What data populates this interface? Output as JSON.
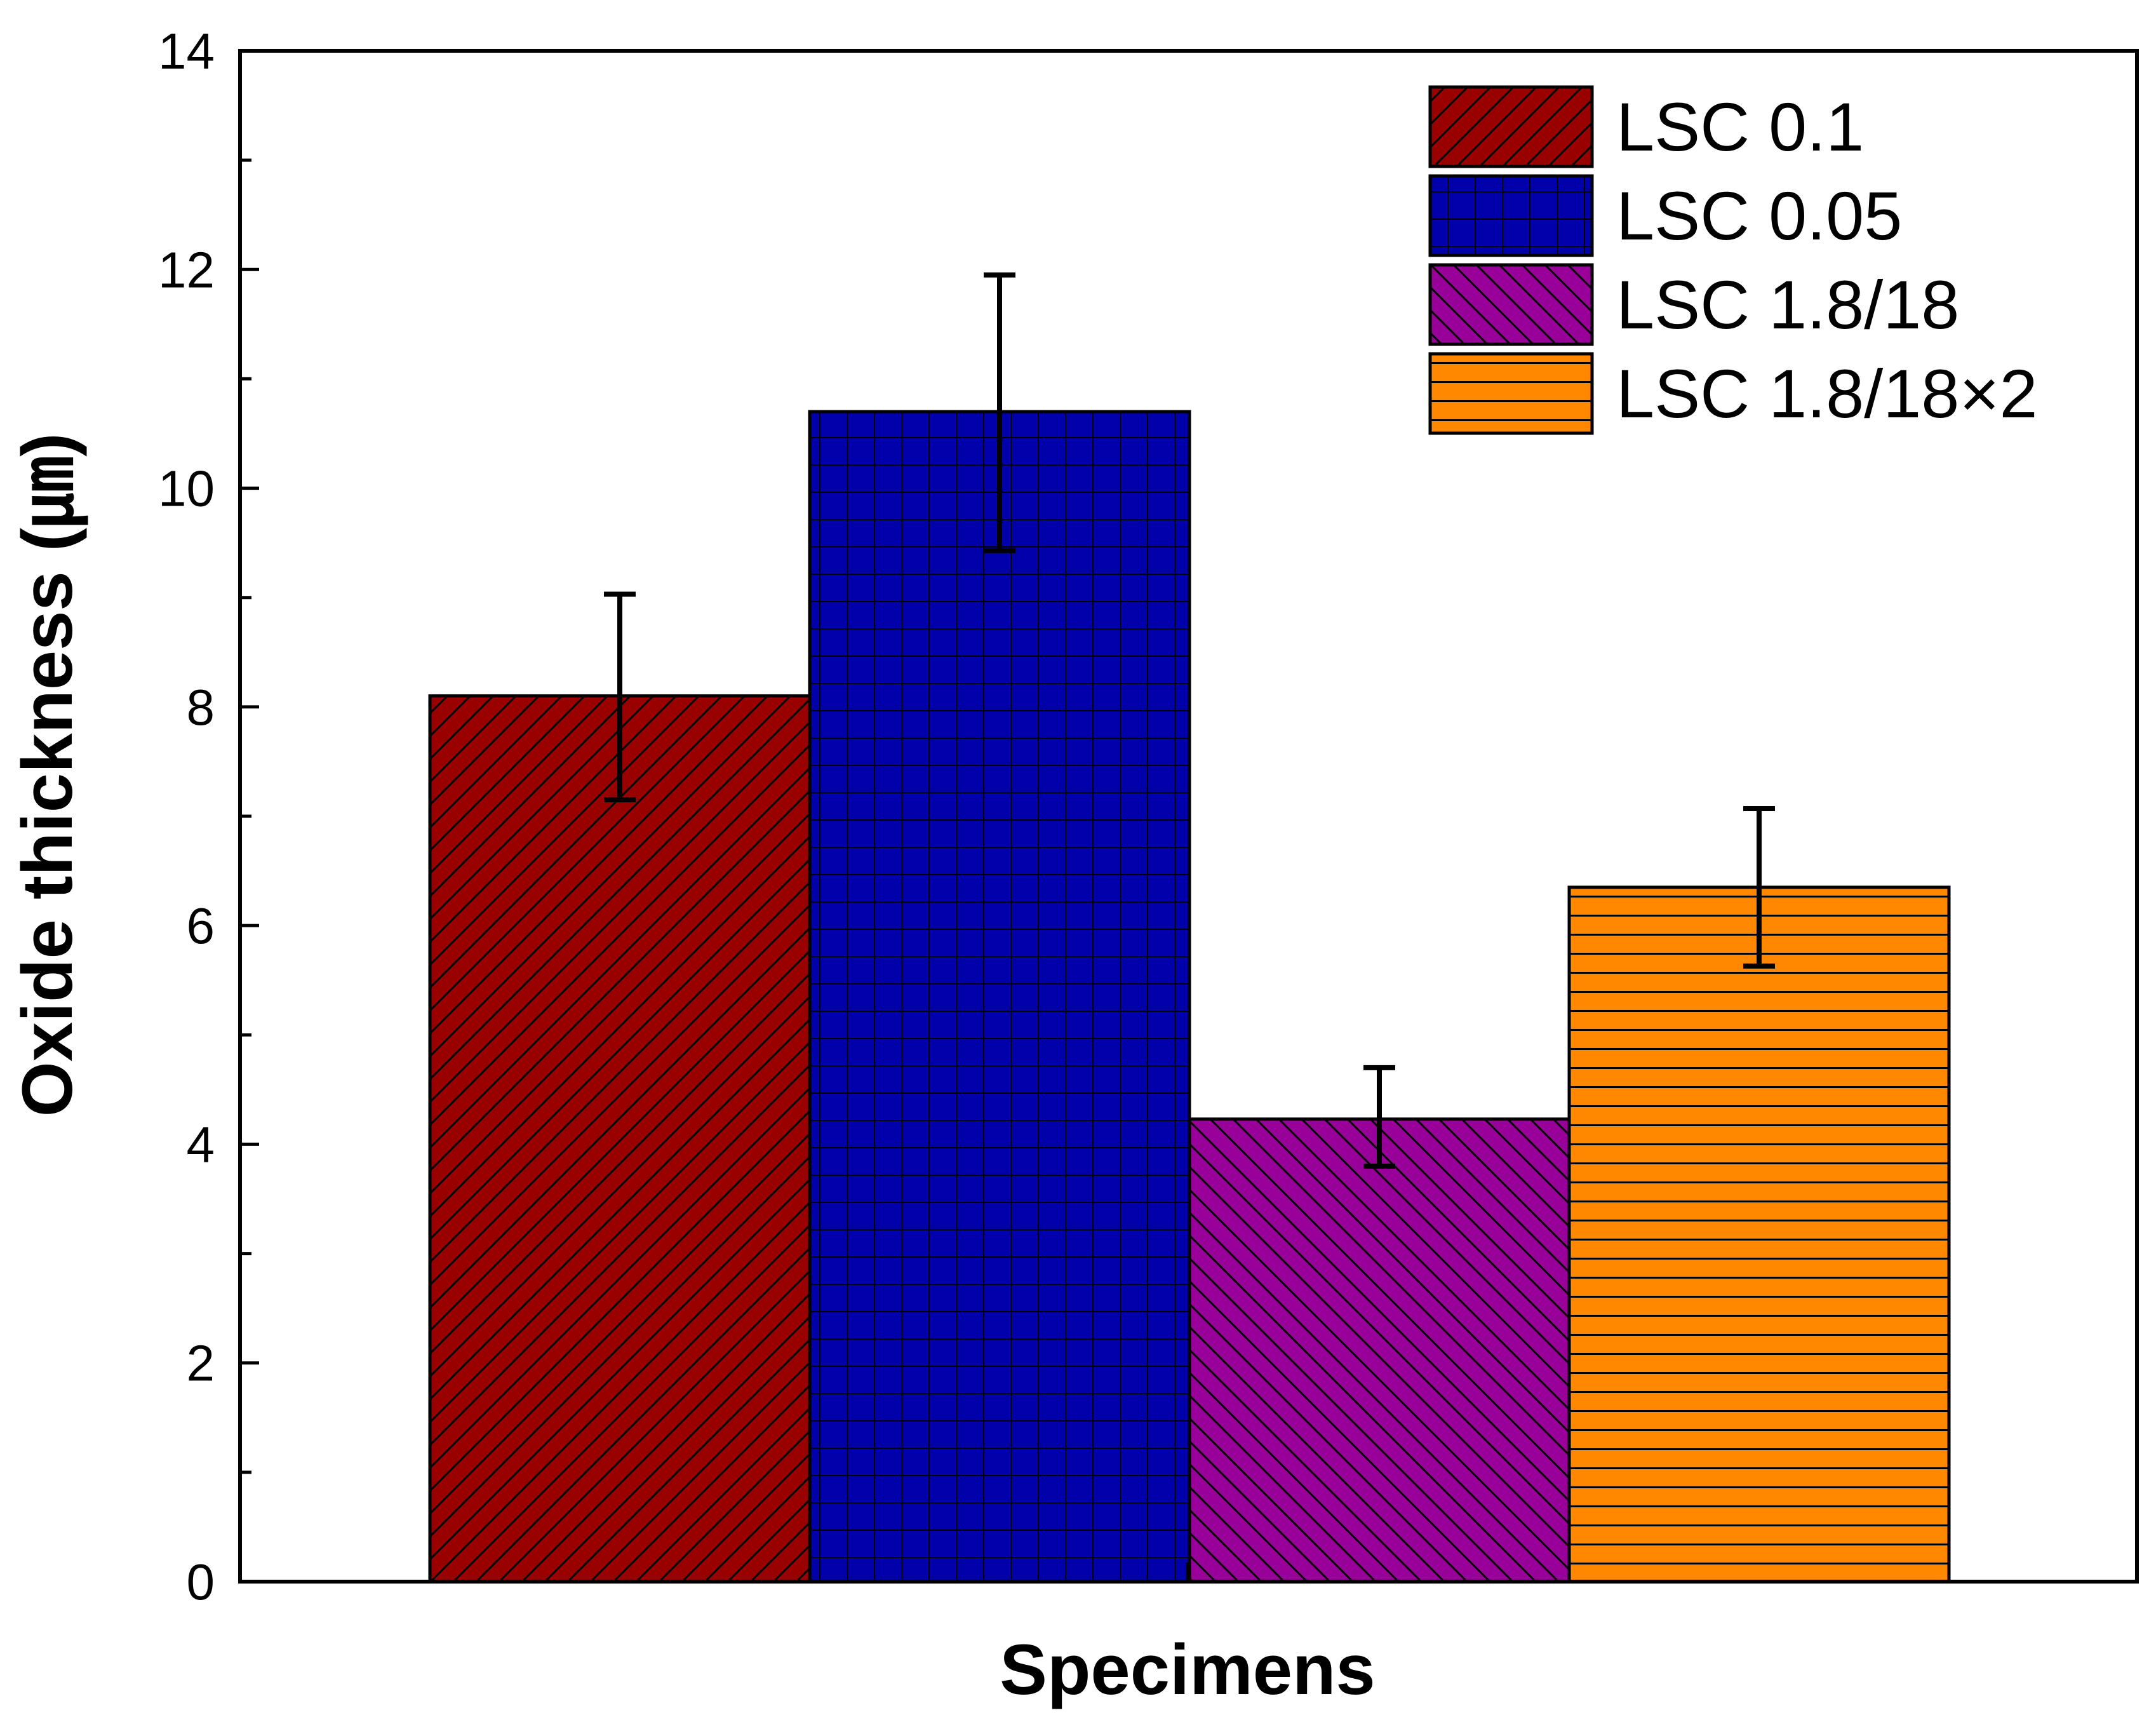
{
  "chart_data": {
    "type": "bar",
    "xlabel": "Specimens",
    "ylabel": "Oxide thickness (㎛)",
    "ylim": [
      0,
      14
    ],
    "yticks": [
      0,
      2,
      4,
      6,
      8,
      10,
      12,
      14
    ],
    "grid": false,
    "legend_position": "top-right",
    "series": [
      {
        "name": "LSC 0.1",
        "value": 8.1,
        "error_low": 7.15,
        "error_high": 9.03,
        "color": "#990000",
        "pattern": "diagonal-up"
      },
      {
        "name": "LSC 0.05",
        "value": 10.7,
        "error_low": 9.43,
        "error_high": 11.95,
        "color": "#0000aa",
        "pattern": "grid"
      },
      {
        "name": "LSC 1.8/18",
        "value": 4.23,
        "error_low": 3.8,
        "error_high": 4.7,
        "color": "#990099",
        "pattern": "diagonal-down"
      },
      {
        "name": "LSC 1.8/18×2",
        "value": 6.35,
        "error_low": 5.63,
        "error_high": 7.07,
        "color": "#ff8800",
        "pattern": "horizontal"
      }
    ]
  }
}
